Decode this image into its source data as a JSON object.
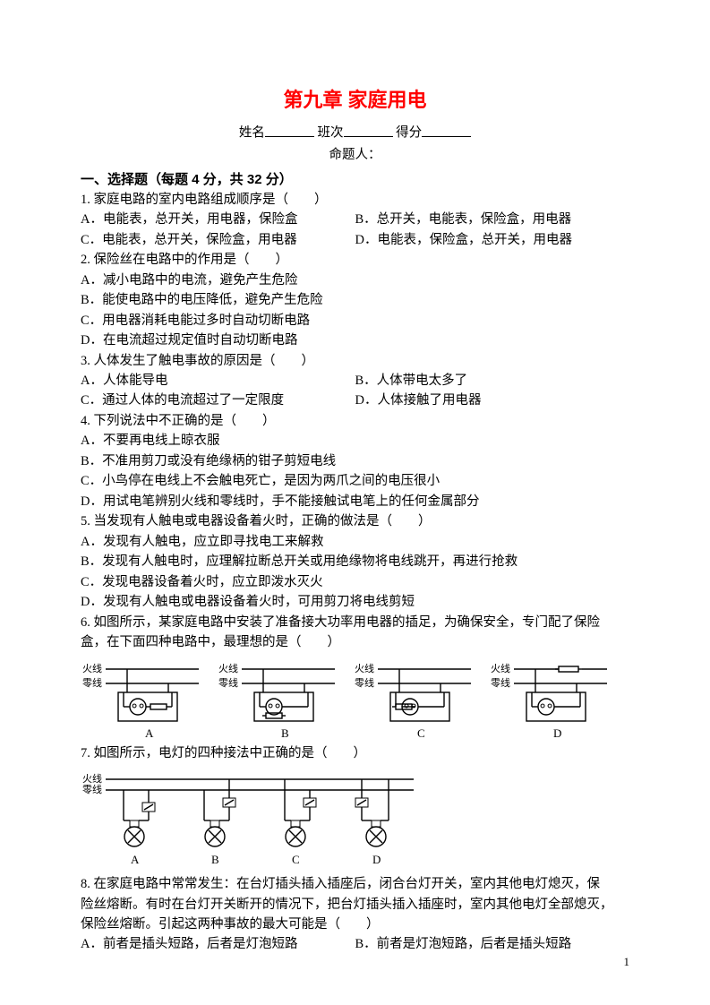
{
  "colors": {
    "title": "#ff0000",
    "text": "#000000",
    "stroke": "#000000",
    "bg": "#ffffff"
  },
  "title": "第九章  家庭用电",
  "meta": {
    "name_label": "姓名",
    "class_label": "班次",
    "score_label": "得分",
    "author_label": "命题人："
  },
  "section1_head": "一、选择题（每题 4 分，共 32 分）",
  "q1": {
    "stem": "1. 家庭电路的室内电路组成顺序是（　　）",
    "A": "A．电能表，总开关，用电器，保险盒",
    "B": "B．总开关，电能表，保险盒，用电器",
    "C": "C．电能表，总开关，保险盒，用电器",
    "D": "D．电能表，保险盒，总开关，用电器"
  },
  "q2": {
    "stem": "2. 保险丝在电路中的作用是（　　）",
    "A": "A．减小电路中的电流，避免产生危险",
    "B": "B．能使电路中的电压降低，避免产生危险",
    "C": "C．用电器消耗电能过多时自动切断电路",
    "D": "D．在电流超过规定值时自动切断电路"
  },
  "q3": {
    "stem": "3. 人体发生了触电事故的原因是（　　）",
    "A": "A．人体能导电",
    "B": "B．人体带电太多了",
    "C": "C．通过人体的电流超过了一定限度",
    "D": "D．人体接触了用电器"
  },
  "q4": {
    "stem": "4. 下列说法中不正确的是（　　）",
    "A": "A．不要再电线上晾衣服",
    "B": "B．不准用剪刀或没有绝缘柄的钳子剪短电线",
    "C": "C．小鸟停在电线上不会触电死亡，是因为两爪之间的电压很小",
    "D": "D．用试电笔辨别火线和零线时，手不能接触试电笔上的任何金属部分"
  },
  "q5": {
    "stem": "5. 当发现有人触电或电器设备着火时，正确的做法是（　　）",
    "A": "A．发现有人触电，应立即寻找电工来解救",
    "B": "B．发现有人触电时，应理解拉断总开关或用绝缘物将电线跳开，再进行抢救",
    "C": "C．发现电器设备着火时，应立即泼水灭火",
    "D": "D．发现有人触电或电器设备着火时，可用剪刀将电线剪短"
  },
  "q6": {
    "stem1": "6. 如图所示，某家庭电路中安装了准备接大功率用电器的插足，为确保安全，专门配了保险",
    "stem2": "盒，在下面四种电路中，最理想的是（　　）"
  },
  "q7": {
    "stem": "7. 如图所示，电灯的四种接法中正确的是（　　）"
  },
  "q8": {
    "l1": "8. 在家庭电路中常常发生：在台灯插头插入插座后，闭合台灯开关，室内其他电灯熄灭，保",
    "l2": "险丝熔断。有时在台灯开关断开的情况下，把台灯插头插入插座时，室内其他电灯全部熄灭，",
    "l3": "保险丝熔断。引起这两种事故的最大可能是（　　）",
    "A": "A．前者是插头短路，后者是灯泡短路",
    "B": "B．前者是灯泡短路，后者是插头短路"
  },
  "page_num": "1",
  "diagram6": {
    "labels": {
      "live": "火线",
      "neutral": "零线",
      "A": "A",
      "B": "B",
      "C": "C",
      "D": "D"
    },
    "stroke_width": 1.4
  },
  "diagram7": {
    "labels": {
      "live": "火线",
      "neutral": "零线",
      "A": "A",
      "B": "B",
      "C": "C",
      "D": "D"
    },
    "stroke_width": 1.4
  }
}
